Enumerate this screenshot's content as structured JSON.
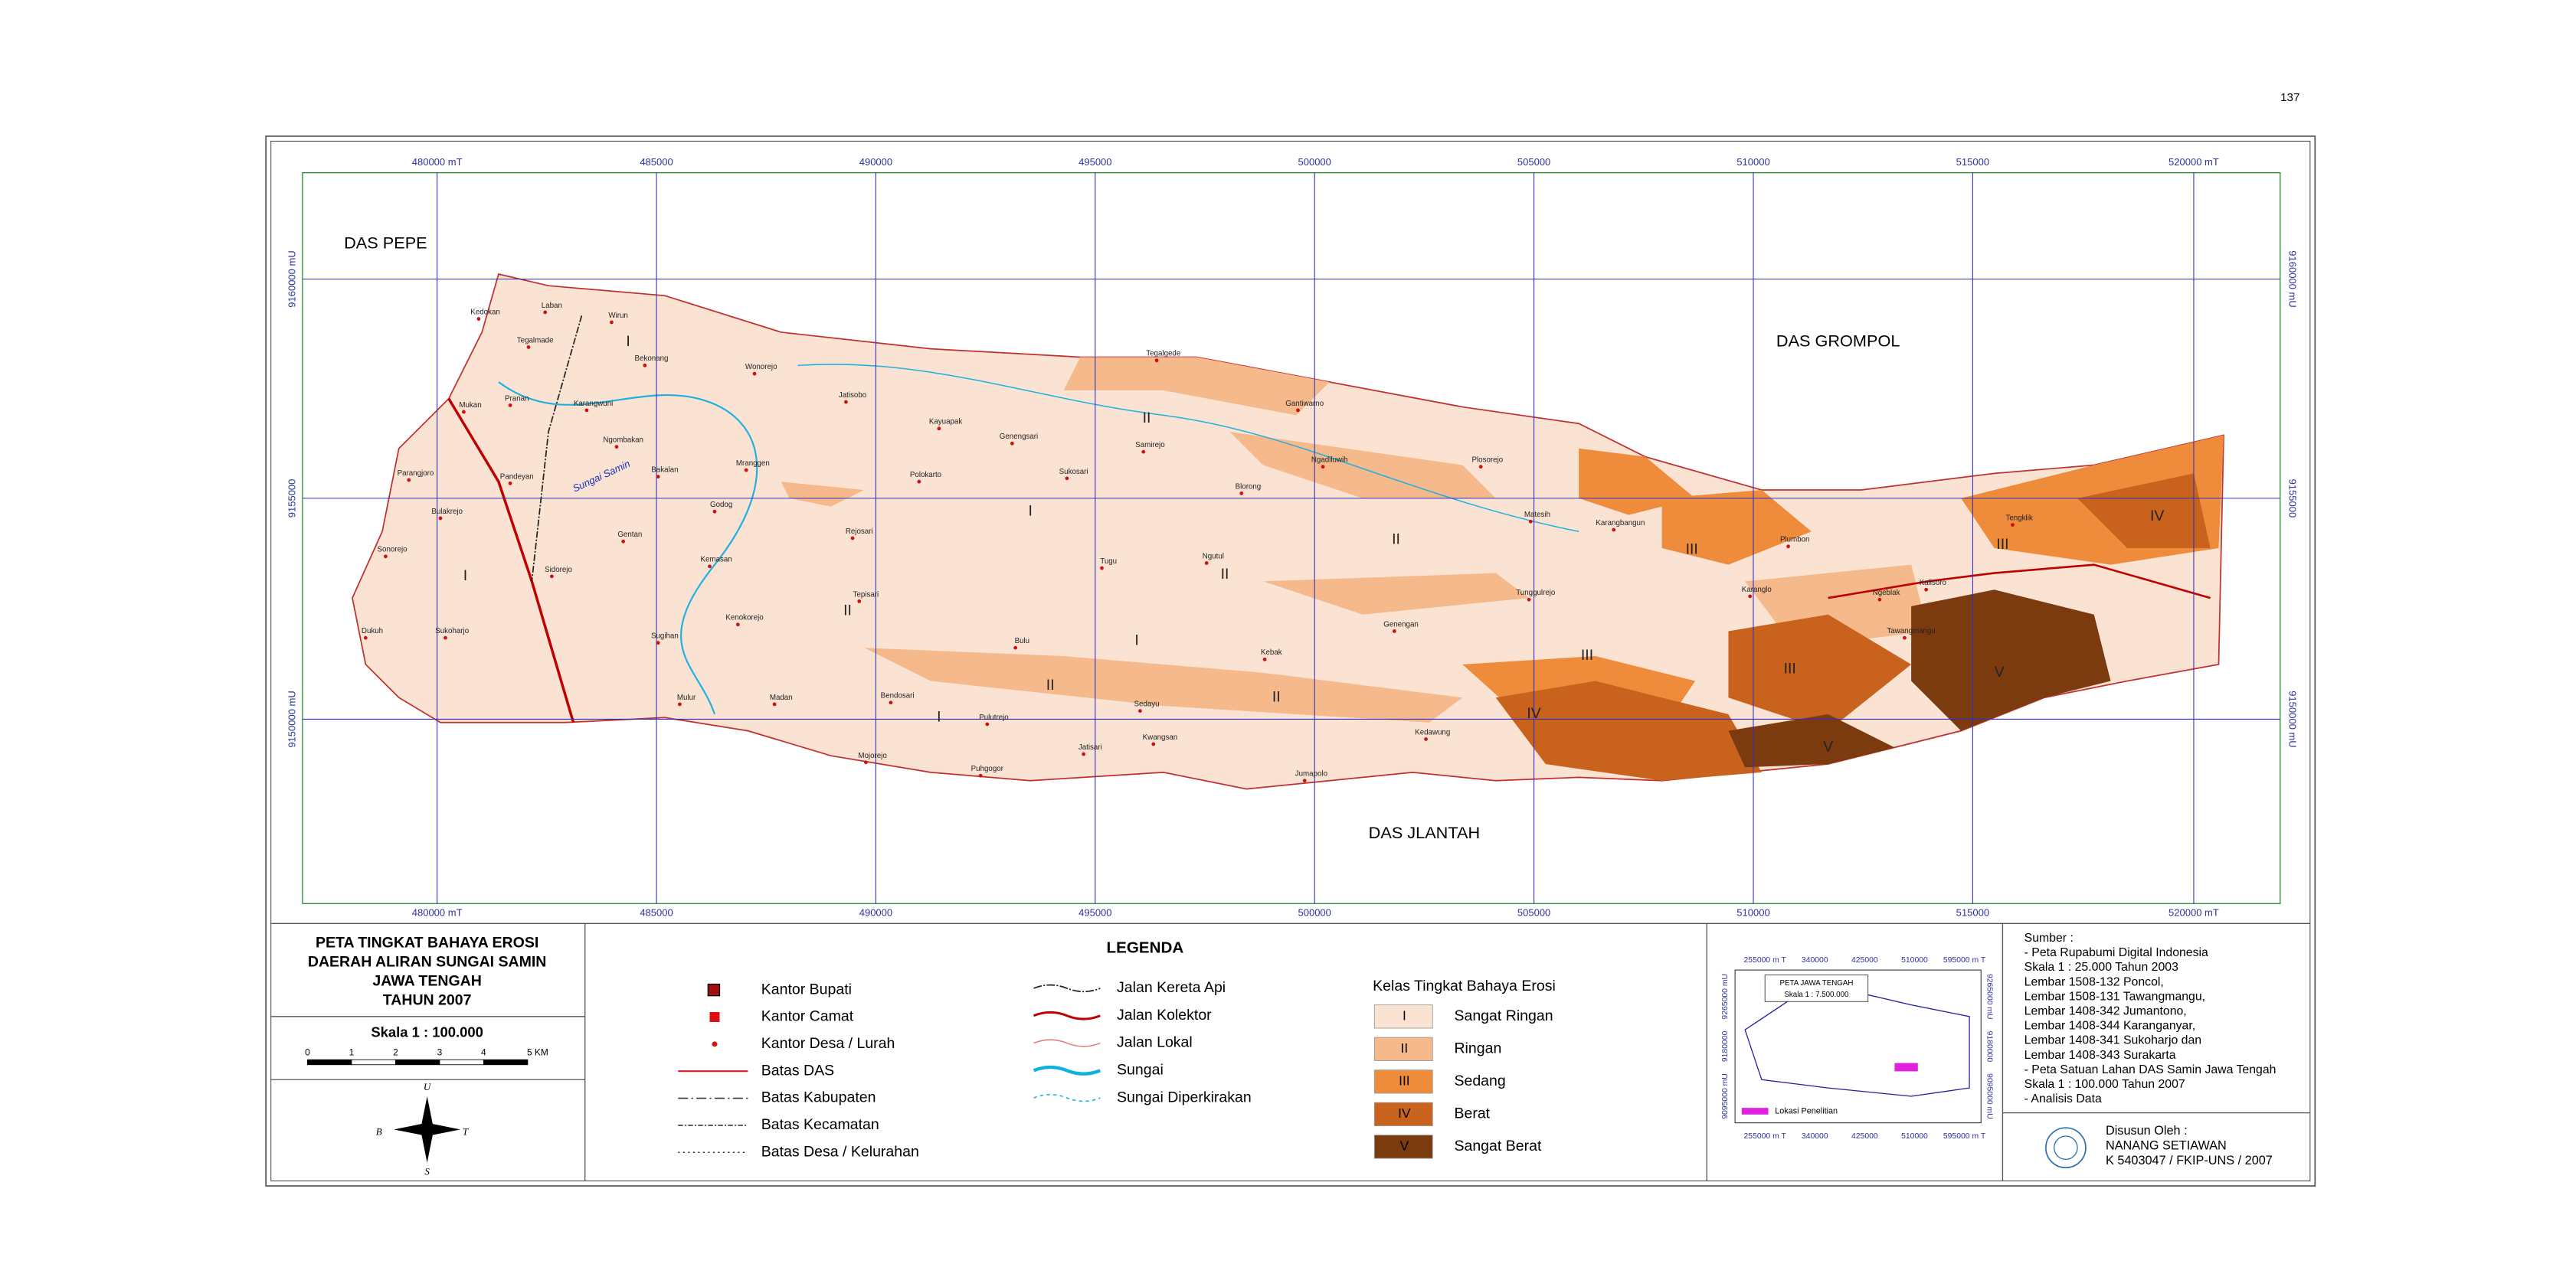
{
  "page_number": "137",
  "map": {
    "x_labels": [
      "480000 mT",
      "485000",
      "490000",
      "495000",
      "500000",
      "505000",
      "510000",
      "515000",
      "520000 mT"
    ],
    "y_labels": [
      "9160000 mU",
      "9155000",
      "9150000 mU"
    ],
    "regions": [
      "DAS PEPE",
      "DAS GROMPOL",
      "DAS JLANTAH"
    ],
    "river_label": "Sungai Samin",
    "villages": [
      "Kedokan",
      "Laban",
      "Wirun",
      "Tegalmade",
      "Bekonang",
      "Wonorejo",
      "Jatisobo",
      "Mukan",
      "Pranan",
      "Karangwuni",
      "Ngombakan",
      "Bakalan",
      "Parangjoro",
      "Pandeyan",
      "Mranggen",
      "Kayuapak",
      "Genengsari",
      "Sukosari",
      "Polokarto",
      "Bulakrejo",
      "Godog",
      "Rejosari",
      "Gentan",
      "Sidorejo",
      "Kemasan",
      "Tugu",
      "Ngutul",
      "Sonorejo",
      "Kenokorejo",
      "Tepisari",
      "Dukuh",
      "Sukoharjo",
      "Sugihan",
      "Bulu",
      "Kebak",
      "Blorong",
      "Samirejo",
      "Bendosari",
      "Mulur",
      "Madan",
      "Pulutrejo",
      "Kwangsan",
      "Jatisari",
      "Mojorejo",
      "Puhgogor",
      "Jumapolo",
      "Kedawung",
      "Genengan",
      "Sedayu",
      "Tunggulrejo",
      "Matesih",
      "Karangbangun",
      "Gantiwarno",
      "Ngadiluwih",
      "Plosorejo",
      "Tegalgede",
      "Tawangmangu",
      "Kalisoro",
      "Tengklik",
      "Plumbon",
      "Ngeblak",
      "Karanglo"
    ],
    "class_marks": [
      "I",
      "I",
      "I",
      "I",
      "I",
      "II",
      "II",
      "II",
      "II",
      "II",
      "II",
      "III",
      "III",
      "III",
      "III",
      "IV",
      "IV",
      "V",
      "V"
    ]
  },
  "title_block": {
    "title": [
      "PETA TINGKAT BAHAYA EROSI",
      "DAERAH ALIRAN SUNGAI SAMIN",
      "JAWA TENGAH",
      "TAHUN 2007"
    ],
    "scale": "Skala 1 : 100.000",
    "scale_ticks": [
      "0",
      "1",
      "2",
      "3",
      "4",
      "5 KM"
    ],
    "compass": [
      "U",
      "S",
      "B",
      "T"
    ]
  },
  "legend": {
    "title": "LEGENDA",
    "symbols": [
      "Kantor Bupati",
      "Kantor Camat",
      "Kantor Desa / Lurah",
      "Batas DAS",
      "Batas Kabupaten",
      "Batas Kecamatan",
      "Batas Desa / Kelurahan"
    ],
    "lines": [
      "Jalan Kereta Api",
      "Jalan Kolektor",
      "Jalan Lokal",
      "Sungai",
      "Sungai Diperkirakan"
    ],
    "class_title": "Kelas Tingkat Bahaya Erosi",
    "classes": [
      {
        "code": "I",
        "name": "Sangat Ringan",
        "color": "#fbe3d3"
      },
      {
        "code": "II",
        "name": "Ringan",
        "color": "#f6b98c"
      },
      {
        "code": "III",
        "name": "Sedang",
        "color": "#ef8c3c"
      },
      {
        "code": "IV",
        "name": "Berat",
        "color": "#c9621c"
      },
      {
        "code": "V",
        "name": "Sangat Berat",
        "color": "#7b3b0f"
      }
    ]
  },
  "inset": {
    "title": "PETA JAWA TENGAH",
    "scale": "Skala 1 : 7.500.000",
    "location": "Lokasi Penelitian",
    "x_labels": [
      "255000 m T",
      "340000",
      "425000",
      "510000",
      "595000 m T"
    ],
    "y_labels": [
      "9095000 mU",
      "9180000",
      "9265000 mU"
    ]
  },
  "sources": [
    "Sumber :",
    "- Peta Rupabumi Digital Indonesia",
    "  Skala 1 : 25.000 Tahun 2003",
    "  Lembar 1508-132 Poncol,",
    "  Lembar 1508-131 Tawangmangu,",
    "  Lembar 1408-342 Jumantono,",
    "  Lembar 1408-344 Karanganyar,",
    "  Lembar 1408-341 Sukoharjo dan",
    "  Lembar 1408-343 Surakarta",
    "- Peta Satuan Lahan DAS Samin Jawa Tengah",
    "  Skala 1 : 100.000 Tahun 2007",
    "- Analisis Data"
  ],
  "compiler": [
    "Disusun Oleh :",
    "NANANG SETIAWAN",
    "K 5403047 / FKIP-UNS / 2007"
  ]
}
